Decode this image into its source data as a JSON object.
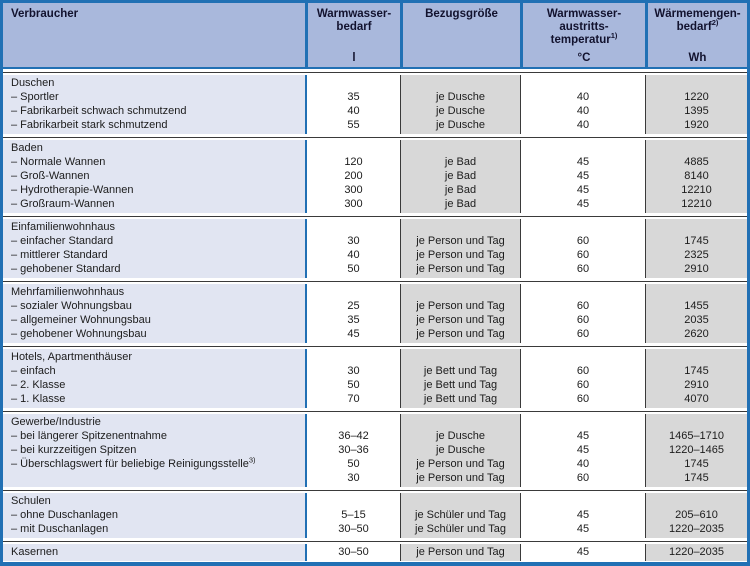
{
  "colors": {
    "border_blue": "#2170b4",
    "header_fill": "#a9b8dc",
    "header_text": "#12122e",
    "column1_fill": "#e1e5f2",
    "gray_fill": "#d8d8d8",
    "dark_line": "#3a3a3a",
    "body_text": "#1c1c1c"
  },
  "table": {
    "columns": [
      {
        "id": "verbraucher",
        "title_lines": [
          "Verbraucher"
        ],
        "sup": "",
        "unit": ""
      },
      {
        "id": "warmwasserbedarf",
        "title_lines": [
          "Warmwasser-",
          "bedarf"
        ],
        "sup": "",
        "unit": "l"
      },
      {
        "id": "bezugsgroesse",
        "title_lines": [
          "Bezugsgröße"
        ],
        "sup": "",
        "unit": ""
      },
      {
        "id": "austrittstemperatur",
        "title_lines": [
          "Warmwasser-",
          "austritts-",
          "temperatur"
        ],
        "sup": "1)",
        "unit": "°C"
      },
      {
        "id": "waermemengenbedarf",
        "title_lines": [
          "Wärmemengen-",
          "bedarf"
        ],
        "sup": "2)",
        "unit": "Wh"
      }
    ],
    "groups": [
      {
        "title": "Duschen",
        "single_line": false,
        "rows": [
          {
            "label": "– Sportler",
            "label_sup": "",
            "demand": "35",
            "ref": "je Dusche",
            "temp": "40",
            "heat": "1220"
          },
          {
            "label": "– Fabrikarbeit schwach schmutzend",
            "label_sup": "",
            "demand": "40",
            "ref": "je Dusche",
            "temp": "40",
            "heat": "1395"
          },
          {
            "label": "– Fabrikarbeit stark schmutzend",
            "label_sup": "",
            "demand": "55",
            "ref": "je Dusche",
            "temp": "40",
            "heat": "1920"
          }
        ]
      },
      {
        "title": "Baden",
        "single_line": false,
        "rows": [
          {
            "label": "– Normale Wannen",
            "label_sup": "",
            "demand": "120",
            "ref": "je Bad",
            "temp": "45",
            "heat": "4885"
          },
          {
            "label": "– Groß-Wannen",
            "label_sup": "",
            "demand": "200",
            "ref": "je Bad",
            "temp": "45",
            "heat": "8140"
          },
          {
            "label": "– Hydrotherapie-Wannen",
            "label_sup": "",
            "demand": "300",
            "ref": "je Bad",
            "temp": "45",
            "heat": "12210"
          },
          {
            "label": "– Großraum-Wannen",
            "label_sup": "",
            "demand": "300",
            "ref": "je Bad",
            "temp": "45",
            "heat": "12210"
          }
        ]
      },
      {
        "title": "Einfamilienwohnhaus",
        "single_line": false,
        "rows": [
          {
            "label": "– einfacher Standard",
            "label_sup": "",
            "demand": "30",
            "ref": "je Person und Tag",
            "temp": "60",
            "heat": "1745"
          },
          {
            "label": "– mittlerer Standard",
            "label_sup": "",
            "demand": "40",
            "ref": "je Person und Tag",
            "temp": "60",
            "heat": "2325"
          },
          {
            "label": "– gehobener Standard",
            "label_sup": "",
            "demand": "50",
            "ref": "je Person und Tag",
            "temp": "60",
            "heat": "2910"
          }
        ]
      },
      {
        "title": "Mehrfamilienwohnhaus",
        "single_line": false,
        "rows": [
          {
            "label": "– sozialer Wohnungsbau",
            "label_sup": "",
            "demand": "25",
            "ref": "je Person und Tag",
            "temp": "60",
            "heat": "1455"
          },
          {
            "label": "– allgemeiner Wohnungsbau",
            "label_sup": "",
            "demand": "35",
            "ref": "je Person und Tag",
            "temp": "60",
            "heat": "2035"
          },
          {
            "label": "– gehobener Wohnungsbau",
            "label_sup": "",
            "demand": "45",
            "ref": "je Person und Tag",
            "temp": "60",
            "heat": "2620"
          }
        ]
      },
      {
        "title": "Hotels, Apartmenthäuser",
        "single_line": false,
        "rows": [
          {
            "label": "– einfach",
            "label_sup": "",
            "demand": "30",
            "ref": "je Bett und Tag",
            "temp": "60",
            "heat": "1745"
          },
          {
            "label": "– 2. Klasse",
            "label_sup": "",
            "demand": "50",
            "ref": "je Bett und Tag",
            "temp": "60",
            "heat": "2910"
          },
          {
            "label": "– 1. Klasse",
            "label_sup": "",
            "demand": "70",
            "ref": "je Bett und Tag",
            "temp": "60",
            "heat": "4070"
          }
        ]
      },
      {
        "title": "Gewerbe/Industrie",
        "single_line": false,
        "rows": [
          {
            "label": "– bei längerer Spitzenentnahme",
            "label_sup": "",
            "demand": "36–42",
            "ref": "je Dusche",
            "temp": "45",
            "heat": "1465–1710"
          },
          {
            "label": "– bei kurzzeitigen Spitzen",
            "label_sup": "",
            "demand": "30–36",
            "ref": "je Dusche",
            "temp": "45",
            "heat": "1220–1465"
          },
          {
            "label": "– Überschlagswert für beliebige Reinigungsstelle",
            "label_sup": "3)",
            "demand": "50",
            "ref": "je Person und Tag",
            "temp": "40",
            "heat": "1745"
          },
          {
            "label": "",
            "label_sup": "",
            "demand": "30",
            "ref": "je Person und Tag",
            "temp": "60",
            "heat": "1745"
          }
        ]
      },
      {
        "title": "Schulen",
        "single_line": false,
        "rows": [
          {
            "label": "– ohne Duschanlagen",
            "label_sup": "",
            "demand": "5–15",
            "ref": "je Schüler und Tag",
            "temp": "45",
            "heat": "205–610"
          },
          {
            "label": "– mit Duschanlagen",
            "label_sup": "",
            "demand": "30–50",
            "ref": "je Schüler und Tag",
            "temp": "45",
            "heat": "1220–2035"
          }
        ]
      },
      {
        "title": "Kasernen",
        "single_line": true,
        "rows": [
          {
            "label": "",
            "label_sup": "",
            "demand": "30–50",
            "ref": "je Person und Tag",
            "temp": "45",
            "heat": "1220–2035"
          }
        ]
      }
    ]
  }
}
